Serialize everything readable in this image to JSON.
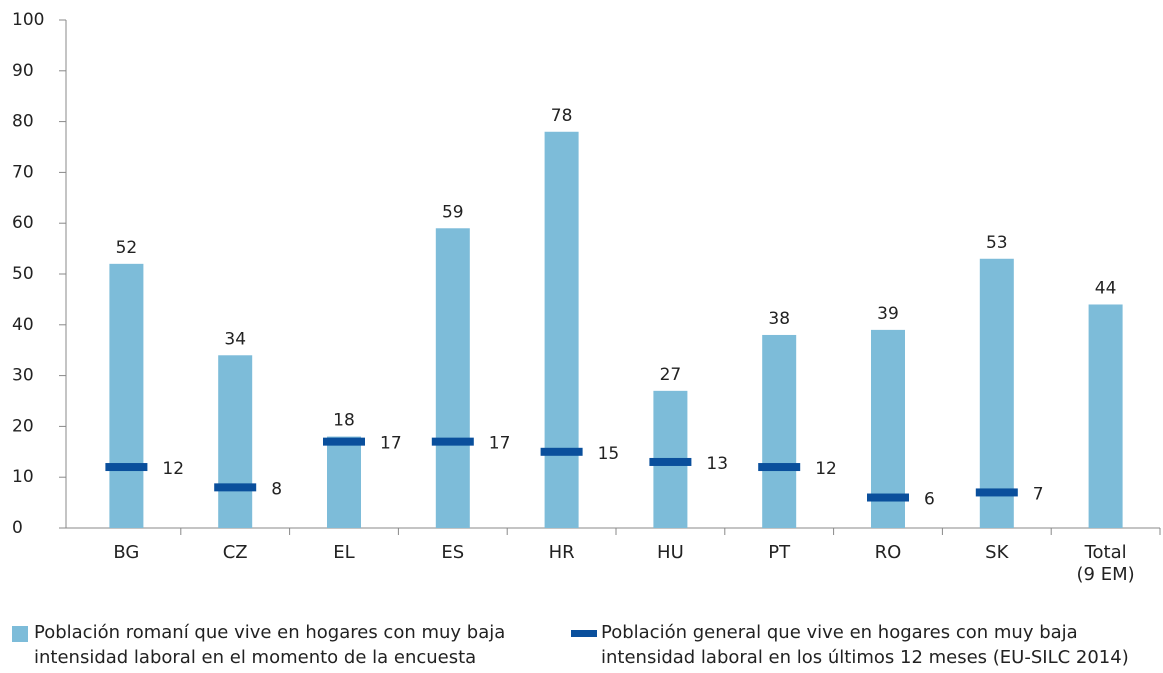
{
  "chart_data": {
    "type": "bar",
    "categories": [
      "BG",
      "CZ",
      "EL",
      "ES",
      "HR",
      "HU",
      "PT",
      "RO",
      "SK",
      "Total (9 EM)"
    ],
    "series": [
      {
        "name": "Población romaní que vive en hogares con muy baja intensidad laboral en el momento de la encuesta",
        "color": "#7dbcd9",
        "values": [
          52,
          34,
          18,
          59,
          78,
          27,
          38,
          39,
          53,
          44
        ]
      },
      {
        "name": "Población general que vive en hogares con muy baja intensidad laboral en los últimos 12 meses (EU-SILC 2014)",
        "color": "#0a4f9c",
        "values": [
          12,
          8,
          17,
          17,
          15,
          13,
          12,
          6,
          7,
          null
        ]
      }
    ],
    "ylim": [
      0,
      100
    ],
    "yticks": [
      0,
      10,
      20,
      30,
      40,
      50,
      60,
      70,
      80,
      90,
      100
    ],
    "grid": false,
    "legend": "bottom"
  }
}
